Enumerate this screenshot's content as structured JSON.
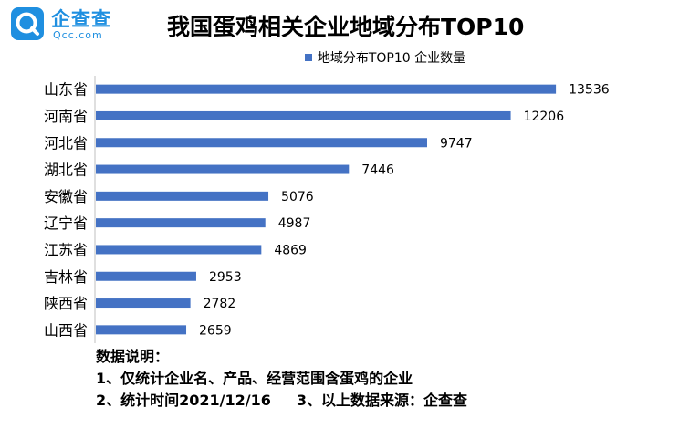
{
  "brand": {
    "name_cn": "企查查",
    "name_en": "Qcc.com",
    "color": "#1f8fe0"
  },
  "chart_data": {
    "type": "bar",
    "orientation": "horizontal",
    "title": "我国蛋鸡相关企业地域分布TOP10",
    "legend_position": "top",
    "categories": [
      "山东省",
      "河南省",
      "河北省",
      "湖北省",
      "安徽省",
      "辽宁省",
      "江苏省",
      "吉林省",
      "陕西省",
      "山西省"
    ],
    "series": [
      {
        "name": "地域分布TOP10 企业数量",
        "color": "#4472c4",
        "values": [
          13536,
          12206,
          9747,
          7446,
          5076,
          4987,
          4869,
          2953,
          2782,
          2659
        ]
      }
    ],
    "xlim": [
      0,
      14500
    ],
    "grid": false
  },
  "notes": {
    "heading": "数据说明：",
    "line1": "1、仅统计企业名、产品、经营范围含蛋鸡的企业",
    "line2a": "2、统计时间2021/12/16",
    "line2b": "3、以上数据来源：企查查"
  }
}
